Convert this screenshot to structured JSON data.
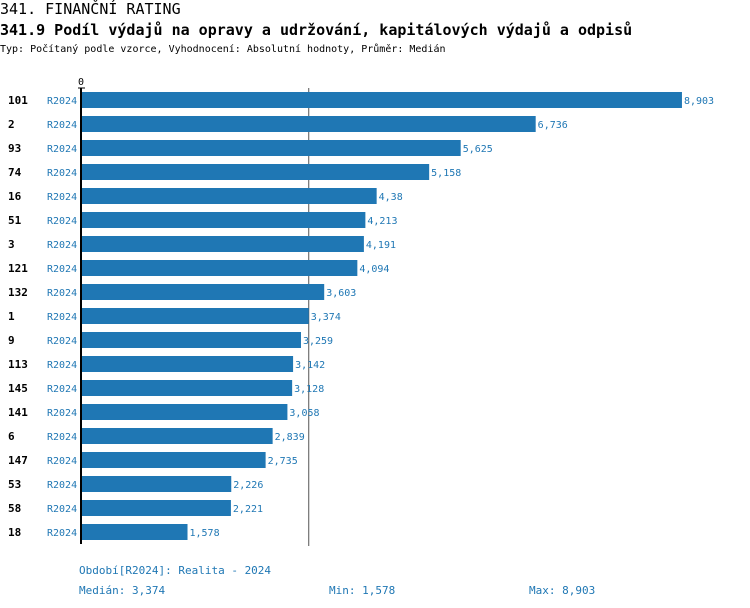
{
  "header": {
    "title": "341. FINANČNÍ RATING",
    "subtitle": "341.9 Podíl výdajů na opravy a udržování, kapitálových výdajů a odpisů",
    "info": "Typ: Počítaný podle vzorce, Vyhodnocení: Absolutní hodnoty, Průměr: Medián"
  },
  "chart_data": {
    "type": "bar",
    "orientation": "horizontal",
    "axis_tick_label": "0",
    "series_label": "R2024",
    "categories": [
      "101",
      "2",
      "93",
      "74",
      "16",
      "51",
      "3",
      "121",
      "132",
      "1",
      "9",
      "113",
      "145",
      "141",
      "6",
      "147",
      "53",
      "58",
      "18"
    ],
    "values": [
      8.903,
      6.736,
      5.625,
      5.158,
      4.38,
      4.213,
      4.191,
      4.094,
      3.603,
      3.374,
      3.259,
      3.142,
      3.128,
      3.058,
      2.839,
      2.735,
      2.226,
      2.221,
      1.578
    ],
    "value_labels": [
      "8,903",
      "6,736",
      "5,625",
      "5,158",
      "4,38",
      "4,213",
      "4,191",
      "4,094",
      "3,603",
      "3,374",
      "3,259",
      "3,142",
      "3,128",
      "3,058",
      "2,839",
      "2,735",
      "2,226",
      "2,221",
      "1,578"
    ],
    "median": 3.374,
    "bar_color": "#1f77b4"
  },
  "footer": {
    "period": "Období[R2024]: Realita - 2024",
    "median": "Medián: 3,374",
    "min": "Min: 1,578",
    "max": "Max: 8,903"
  }
}
